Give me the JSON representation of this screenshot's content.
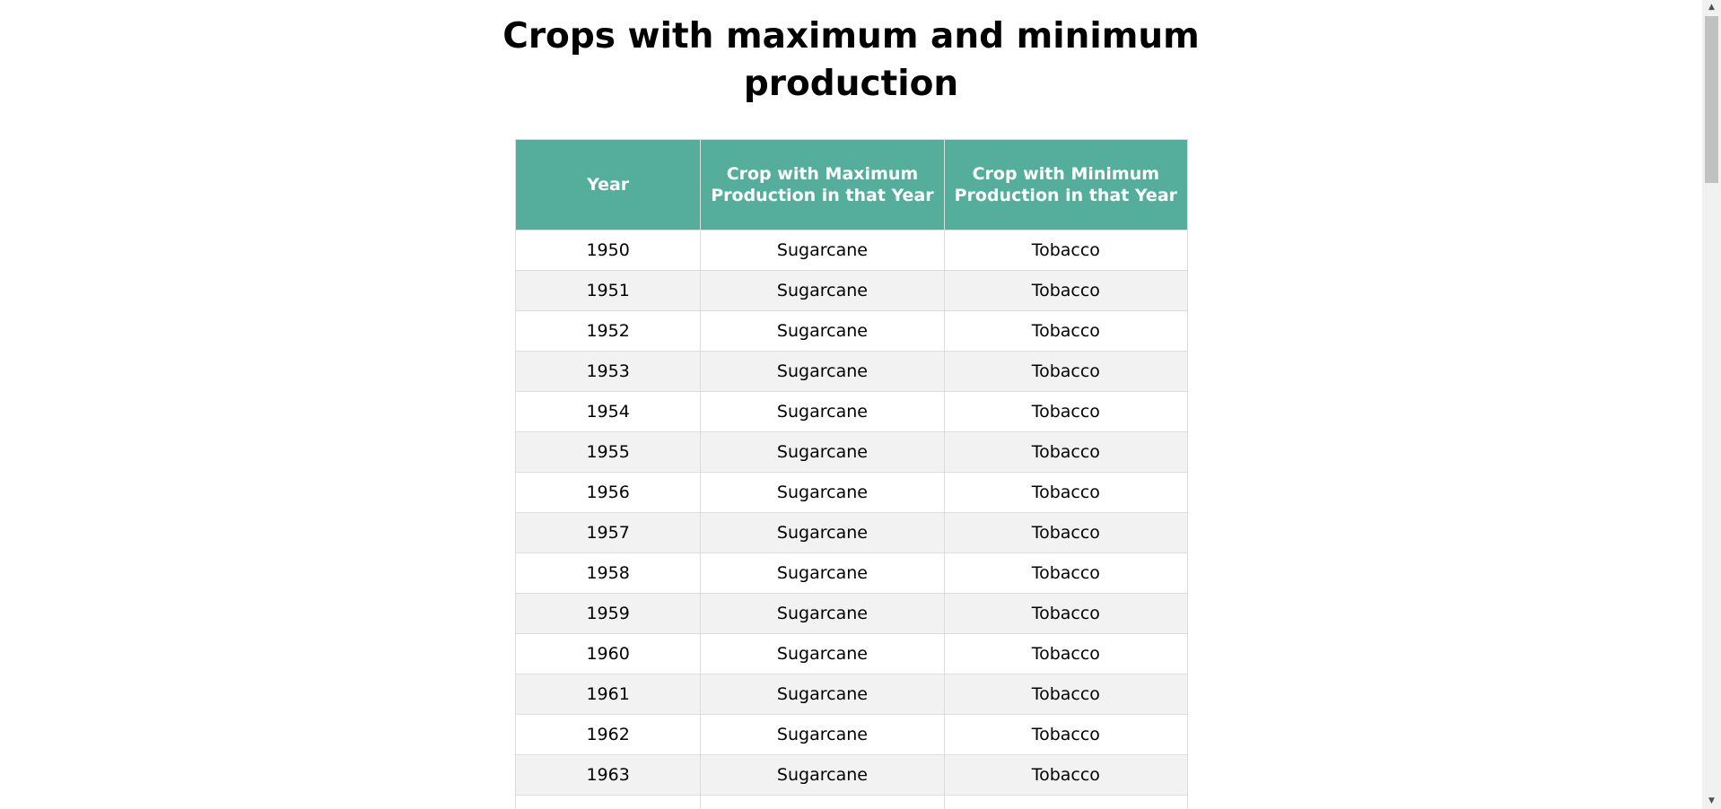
{
  "page": {
    "title_line1": "Crops with maximum and minimum",
    "title_line2": "production"
  },
  "table": {
    "headers": [
      "Year",
      "Crop with Maximum Production in that Year",
      "Crop with Minimum Production in that Year"
    ],
    "rows": [
      [
        "1950",
        "Sugarcane",
        "Tobacco"
      ],
      [
        "1951",
        "Sugarcane",
        "Tobacco"
      ],
      [
        "1952",
        "Sugarcane",
        "Tobacco"
      ],
      [
        "1953",
        "Sugarcane",
        "Tobacco"
      ],
      [
        "1954",
        "Sugarcane",
        "Tobacco"
      ],
      [
        "1955",
        "Sugarcane",
        "Tobacco"
      ],
      [
        "1956",
        "Sugarcane",
        "Tobacco"
      ],
      [
        "1957",
        "Sugarcane",
        "Tobacco"
      ],
      [
        "1958",
        "Sugarcane",
        "Tobacco"
      ],
      [
        "1959",
        "Sugarcane",
        "Tobacco"
      ],
      [
        "1960",
        "Sugarcane",
        "Tobacco"
      ],
      [
        "1961",
        "Sugarcane",
        "Tobacco"
      ],
      [
        "1962",
        "Sugarcane",
        "Tobacco"
      ],
      [
        "1963",
        "Sugarcane",
        "Tobacco"
      ],
      [
        "",
        "",
        ""
      ]
    ]
  },
  "colors": {
    "header_bg": "#54ae9b",
    "header_text": "#ffffff",
    "row_alt_bg": "#f2f2f2",
    "border": "#dddddd"
  },
  "scrollbar": {
    "up_icon": "triangle-up",
    "down_icon": "triangle-down"
  }
}
